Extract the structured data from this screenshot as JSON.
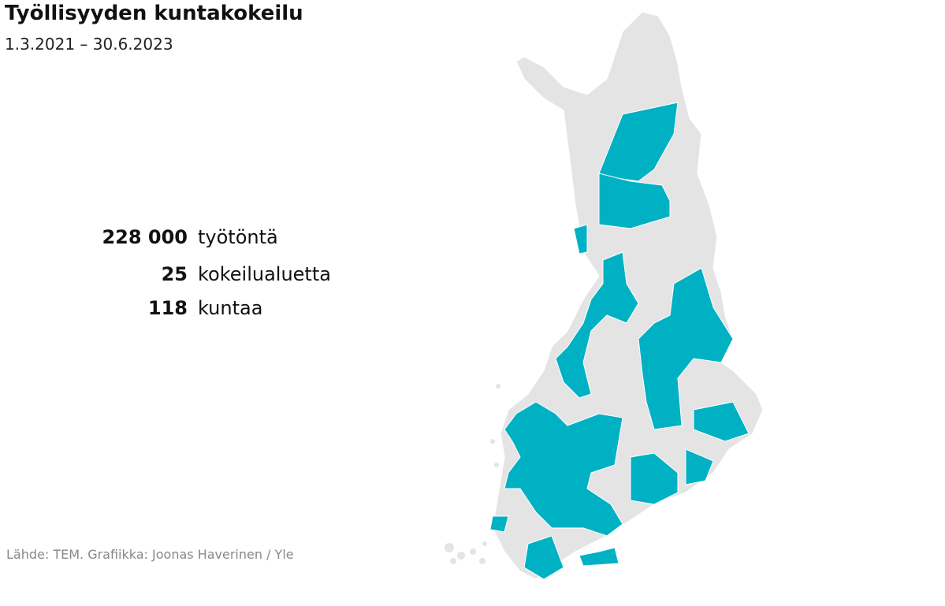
{
  "header": {
    "title": "Työllisyyden kuntakokeilu",
    "subtitle": "1.3.2021 – 30.6.2023"
  },
  "stats": [
    {
      "value": "228 000",
      "label": "työtöntä"
    },
    {
      "value": "25",
      "label": "kokeilualuetta"
    },
    {
      "value": "118",
      "label": "kuntaa"
    }
  ],
  "source": "Lähde: TEM. Grafiikka: Joonas Haverinen / Yle"
}
